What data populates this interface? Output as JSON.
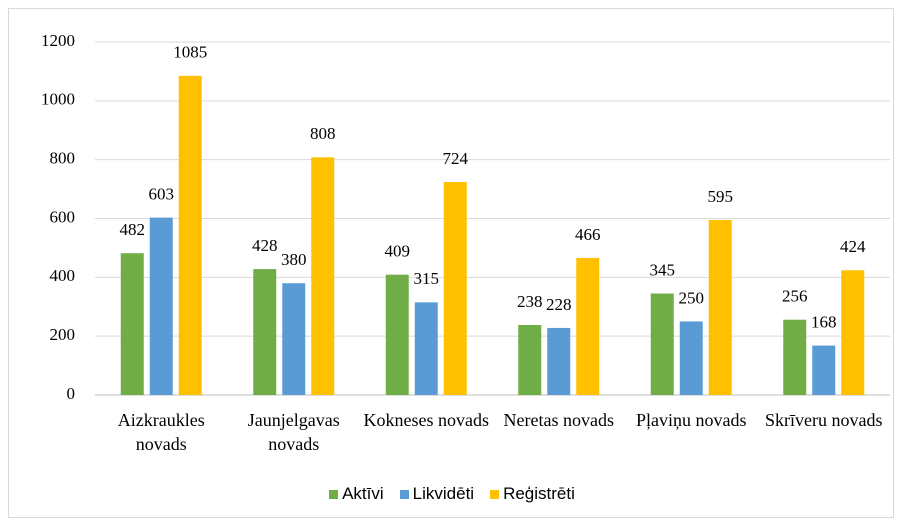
{
  "chart_data": {
    "type": "bar",
    "categories": [
      "Aizkraukles novads",
      "Jaunjelgavas novads",
      "Kokneses novads",
      "Neretas novads",
      "Pļaviņu novads",
      "Skrīveru novads"
    ],
    "series": [
      {
        "name": "Aktīvi",
        "color": "#70ad47",
        "values": [
          482,
          428,
          409,
          238,
          345,
          256
        ]
      },
      {
        "name": "Likvidēti",
        "color": "#5b9bd5",
        "values": [
          603,
          380,
          315,
          228,
          250,
          168
        ]
      },
      {
        "name": "Reģistrēti",
        "color": "#ffc000",
        "values": [
          1085,
          808,
          724,
          466,
          595,
          424
        ]
      }
    ],
    "ylim": [
      0,
      1200
    ],
    "yticks": [
      0,
      200,
      400,
      600,
      800,
      1000,
      1200
    ],
    "grid": true,
    "legend": "bottom"
  }
}
